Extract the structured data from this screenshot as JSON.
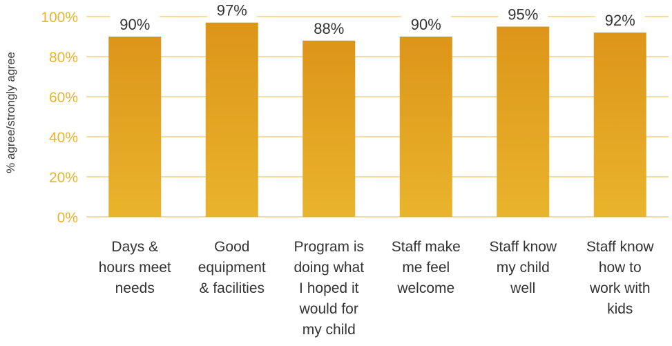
{
  "chart_data": {
    "type": "bar",
    "categories": [
      [
        "Days &",
        "hours meet",
        "needs"
      ],
      [
        "Good",
        "equipment",
        "& facilities"
      ],
      [
        "Program is",
        "doing what",
        "I hoped it",
        "would for",
        "my child"
      ],
      [
        "Staff make",
        "me feel",
        "welcome"
      ],
      [
        "Staff know",
        "my child",
        "well"
      ],
      [
        "Staff know",
        "how to",
        "work with",
        "kids"
      ]
    ],
    "values": [
      90,
      97,
      88,
      90,
      95,
      92
    ],
    "data_labels": [
      "90%",
      "97%",
      "88%",
      "90%",
      "95%",
      "92%"
    ],
    "ylabel": "% agree/strongly agree",
    "ylim": [
      0,
      100
    ],
    "yticks": [
      0,
      20,
      40,
      60,
      80,
      100
    ],
    "ytick_labels": [
      "0%",
      "20%",
      "40%",
      "60%",
      "80%",
      "100%"
    ],
    "grid": "horizontal",
    "legend": "none",
    "colors": {
      "bar_top": "#DD9519",
      "bar_bottom": "#E9B42C",
      "axis_tick_text": "#E9B42C",
      "gridline": "#EFC868",
      "label_text": "#333333"
    }
  }
}
